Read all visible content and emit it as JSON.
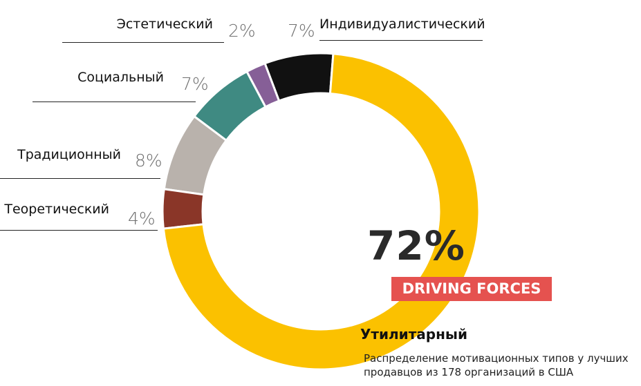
{
  "chart_data": {
    "type": "pie",
    "variant": "donut",
    "categories": [
      "Утилитарный",
      "Теоретический",
      "Традиционный",
      "Социальный",
      "Эстетический",
      "Индивидуалистический"
    ],
    "values": [
      72,
      4,
      8,
      7,
      2,
      7
    ],
    "value_labels": [
      "72%",
      "4%",
      "8%",
      "7%",
      "2%",
      "7%"
    ],
    "colors": [
      "#fbc100",
      "#8a3628",
      "#b9b2ac",
      "#3f8a82",
      "#865f97",
      "#111111"
    ],
    "start_category": "Индивидуалистический",
    "direction": "counterclockwise"
  },
  "highlight": {
    "value": "72%",
    "badge": "DRIVING FORCES",
    "badge_color": "#e5524f",
    "label": "Утилитарный"
  },
  "caption": "Распределение  мотивационных типов у лучших продавцов из  178 организаций в США"
}
